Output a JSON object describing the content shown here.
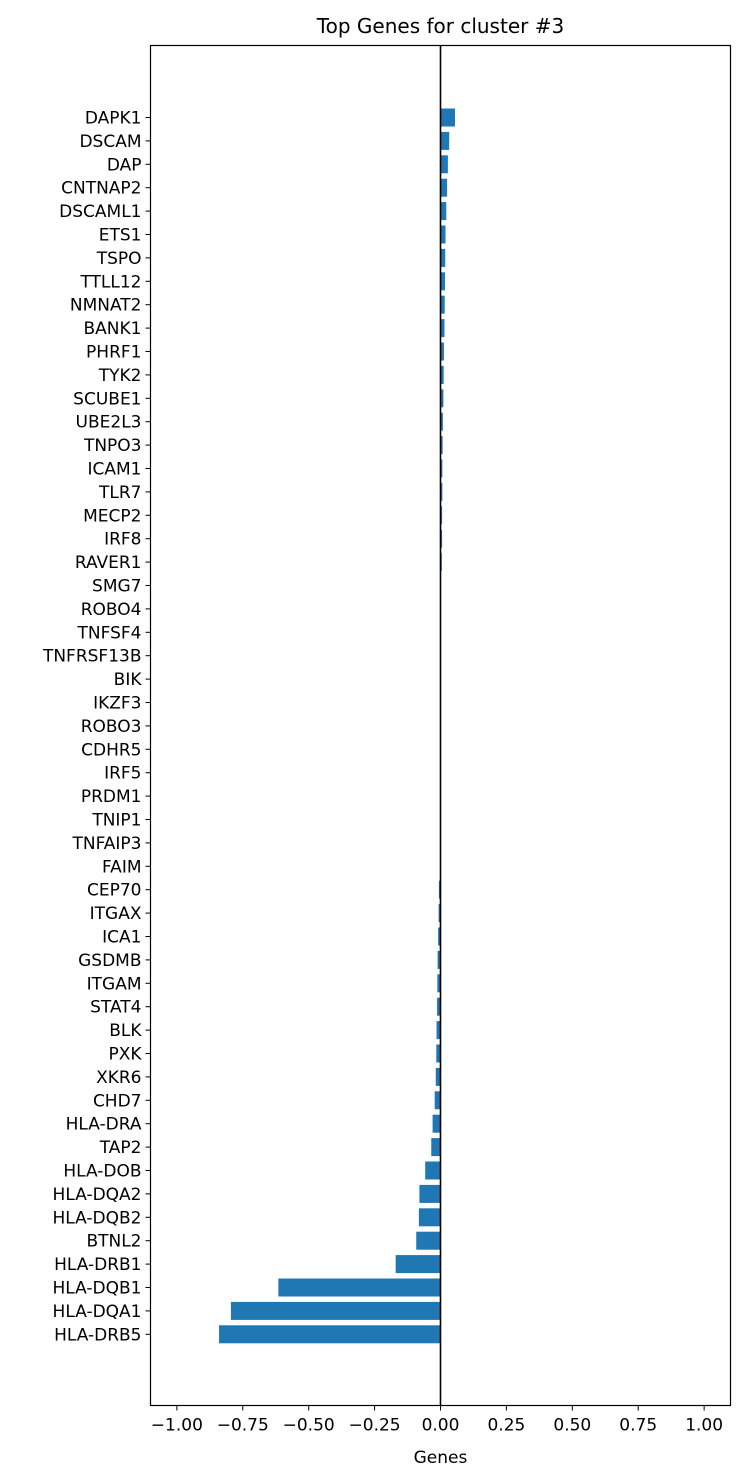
{
  "chart_data": {
    "type": "bar",
    "orientation": "horizontal",
    "title": "Top Genes for cluster #3",
    "xlabel": "Genes",
    "ylabel": "",
    "xlim": [
      -1.1,
      1.1
    ],
    "xticks": [
      -1.0,
      -0.75,
      -0.5,
      -0.25,
      0.0,
      0.25,
      0.5,
      0.75,
      1.0
    ],
    "xtick_labels": [
      "−1.00",
      "−0.75",
      "−0.50",
      "−0.25",
      "0.00",
      "0.25",
      "0.50",
      "0.75",
      "1.00"
    ],
    "bar_color": "#1f77b4",
    "zero_line": true,
    "grid": false,
    "categories": [
      "DAPK1",
      "DSCAM",
      "DAP",
      "CNTNAP2",
      "DSCAML1",
      "ETS1",
      "TSPO",
      "TTLL12",
      "NMNAT2",
      "BANK1",
      "PHRF1",
      "TYK2",
      "SCUBE1",
      "UBE2L3",
      "TNPO3",
      "ICAM1",
      "TLR7",
      "MECP2",
      "IRF8",
      "RAVER1",
      "SMG7",
      "ROBO4",
      "TNFSF4",
      "TNFRSF13B",
      "BIK",
      "IKZF3",
      "ROBO3",
      "CDHR5",
      "IRF5",
      "PRDM1",
      "TNIP1",
      "TNFAIP3",
      "FAIM",
      "CEP70",
      "ITGAX",
      "ICA1",
      "GSDMB",
      "ITGAM",
      "STAT4",
      "BLK",
      "PXK",
      "XKR6",
      "CHD7",
      "HLA-DRA",
      "TAP2",
      "HLA-DOB",
      "HLA-DQA2",
      "HLA-DQB2",
      "BTNL2",
      "HLA-DRB1",
      "HLA-DQB1",
      "HLA-DQA1",
      "HLA-DRB5"
    ],
    "values": [
      0.055,
      0.033,
      0.028,
      0.025,
      0.022,
      0.019,
      0.018,
      0.017,
      0.016,
      0.015,
      0.013,
      0.012,
      0.011,
      0.009,
      0.008,
      0.007,
      0.007,
      0.006,
      0.006,
      0.005,
      0.0,
      0.0,
      0.0,
      0.0,
      0.0,
      0.0,
      0.0,
      0.0,
      0.0,
      0.0,
      0.0,
      0.0,
      0.0,
      -0.006,
      -0.007,
      -0.009,
      -0.011,
      -0.012,
      -0.013,
      -0.015,
      -0.016,
      -0.018,
      -0.022,
      -0.03,
      -0.035,
      -0.058,
      -0.08,
      -0.082,
      -0.092,
      -0.17,
      -0.615,
      -0.795,
      -0.84
    ]
  }
}
